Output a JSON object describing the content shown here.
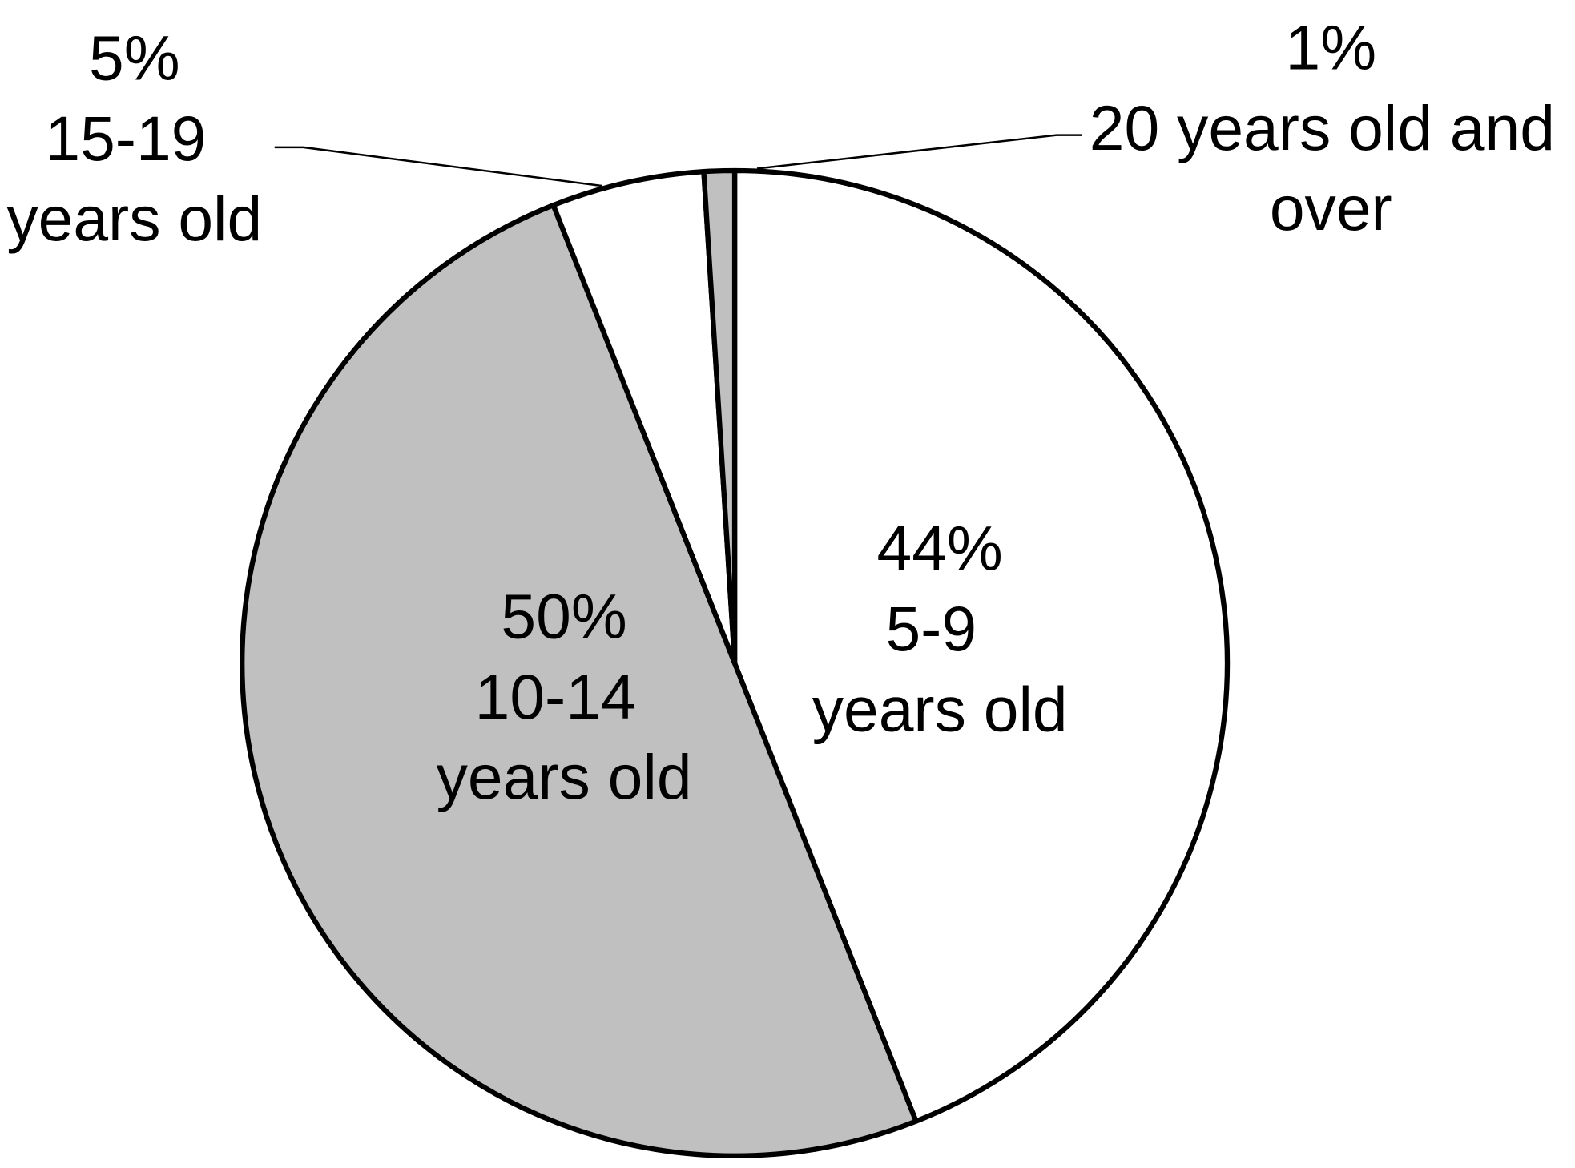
{
  "chart_data": {
    "type": "pie",
    "categories": [
      "5-9 years old",
      "10-14 years old",
      "15-19 years old",
      "20 years old and over"
    ],
    "values": [
      44,
      50,
      5,
      1
    ],
    "value_labels": [
      "44%",
      "50%",
      "5%",
      "1%"
    ],
    "colors": [
      "#ffffff",
      "#c0c0c0",
      "#ffffff",
      "#c0c0c0"
    ]
  }
}
